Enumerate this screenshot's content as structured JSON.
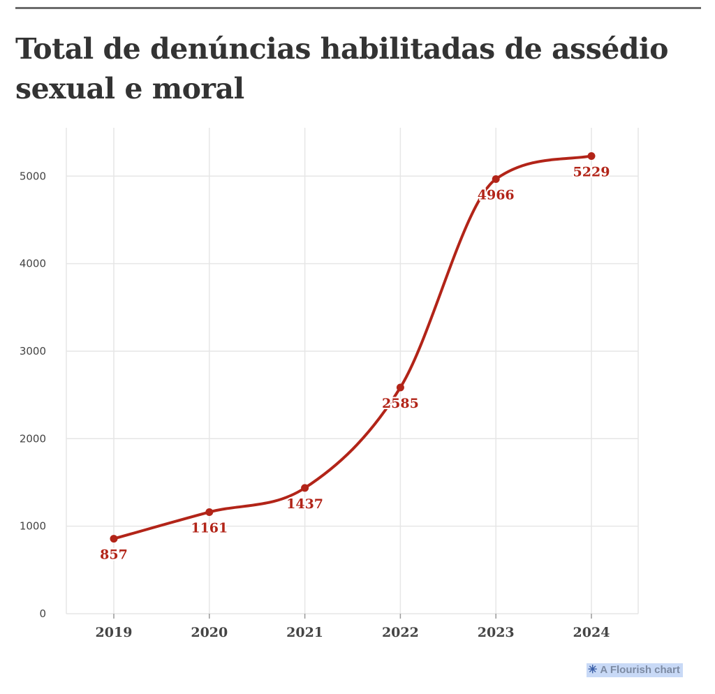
{
  "title": "Total de denúncias habilitadas de assédio sexual e moral",
  "credit": {
    "icon": "flourish-asterisk-icon",
    "label": "A Flourish chart"
  },
  "colors": {
    "line": "#b22418",
    "grid": "#e6e6e6",
    "axis_text": "#444444",
    "title": "#333333"
  },
  "chart_data": {
    "type": "line",
    "title": "Total de denúncias habilitadas de assédio sexual e moral",
    "x": [
      "2019",
      "2020",
      "2021",
      "2022",
      "2023",
      "2024"
    ],
    "series": [
      {
        "values": [
          857,
          1161,
          1437,
          2585,
          4966,
          5229
        ]
      }
    ],
    "data_labels": [
      "857",
      "1161",
      "1437",
      "2585",
      "4966",
      "5229"
    ],
    "ylim": [
      0,
      5450
    ],
    "yticks": [
      0,
      1000,
      2000,
      3000,
      4000,
      5000
    ],
    "ytick_labels": [
      "0",
      "1000",
      "2000",
      "3000",
      "4000",
      "5000"
    ],
    "xlabel": "",
    "ylabel": "",
    "grid": true,
    "curve": "smooth"
  }
}
